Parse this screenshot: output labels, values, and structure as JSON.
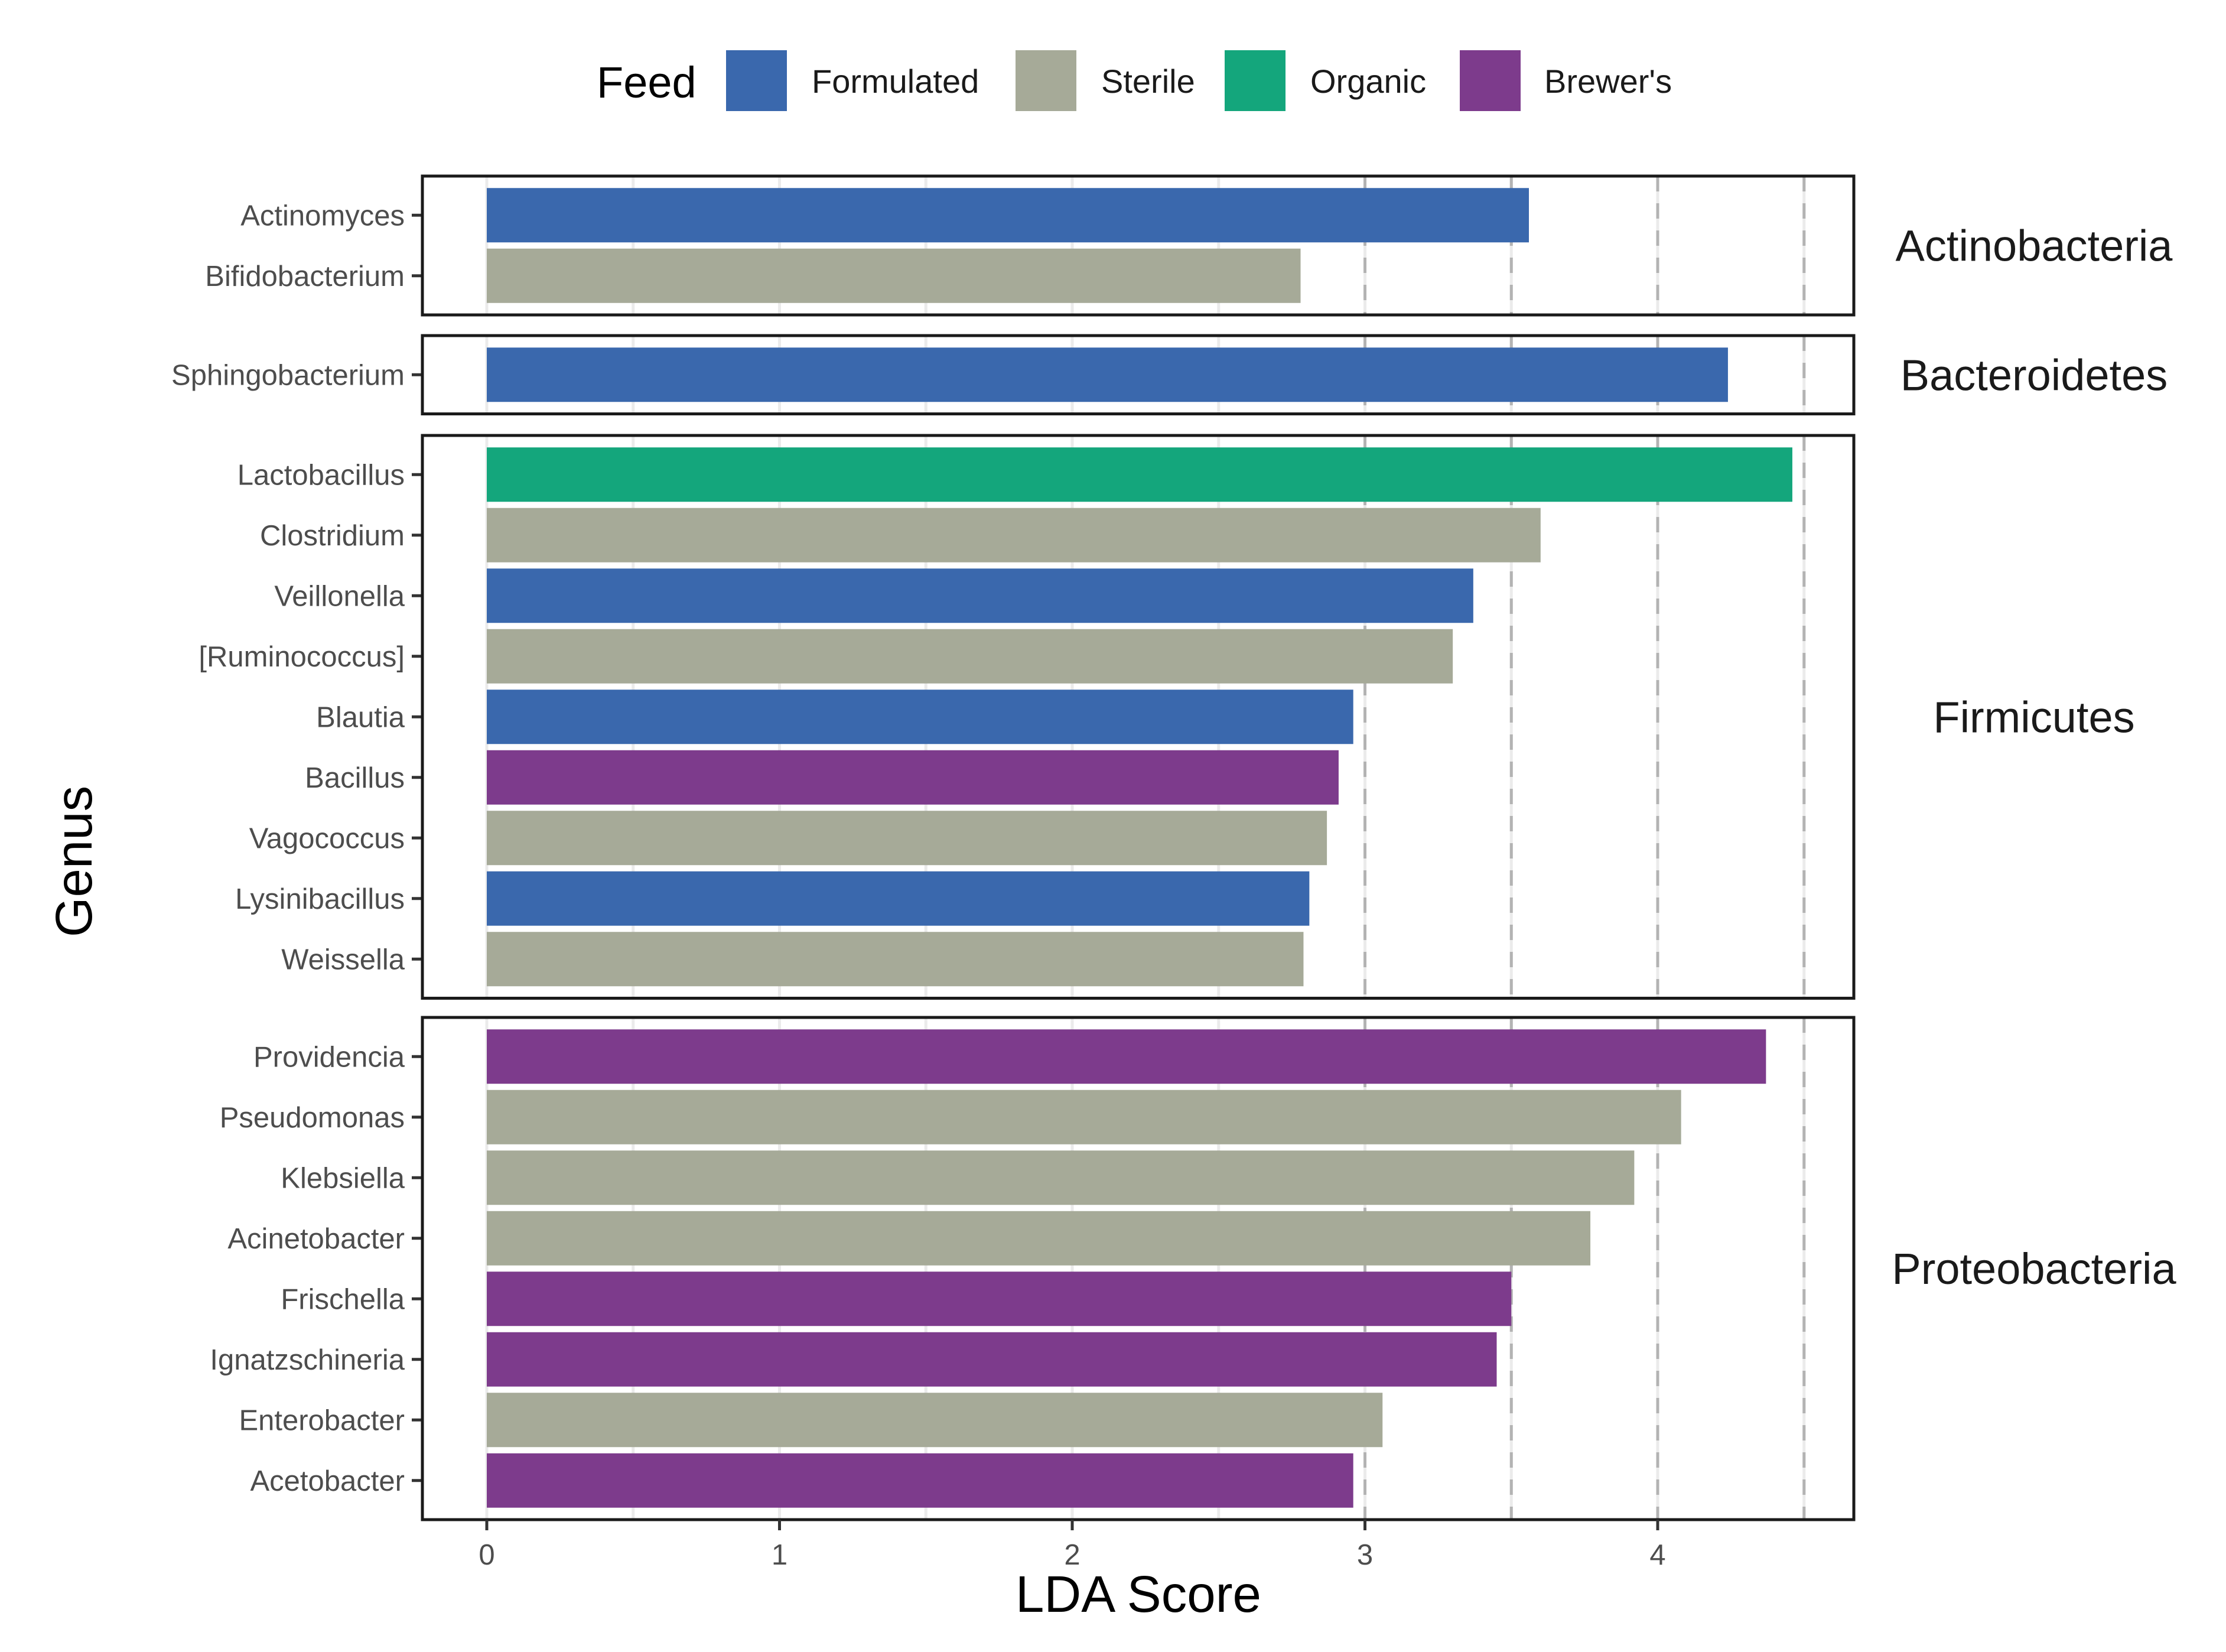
{
  "chart_data": {
    "type": "bar",
    "orientation": "horizontal",
    "xlabel": "LDA Score",
    "ylabel": "Genus",
    "xlim": [
      -0.22,
      4.67
    ],
    "xticks": [
      0,
      1,
      2,
      3,
      4
    ],
    "xtick_labels": [
      "0",
      "1",
      "2",
      "3",
      "4"
    ],
    "reference_lines": [
      3,
      3.5,
      4,
      4.5
    ],
    "legend": {
      "title": "Feed",
      "position": "top",
      "entries": [
        {
          "name": "Formulated",
          "color": "#3a68ad"
        },
        {
          "name": "Sterile",
          "color": "#a6aa98"
        },
        {
          "name": "Organic",
          "color": "#14a67c"
        },
        {
          "name": "Brewer's",
          "color": "#7d3b8c"
        }
      ]
    },
    "facets": [
      {
        "phylum": "Actinobacteria",
        "bars": [
          {
            "genus": "Actinomyces",
            "value": 3.56,
            "feed": "Formulated"
          },
          {
            "genus": "Bifidobacterium",
            "value": 2.78,
            "feed": "Sterile"
          }
        ]
      },
      {
        "phylum": "Bacteroidetes",
        "bars": [
          {
            "genus": "Sphingobacterium",
            "value": 4.24,
            "feed": "Formulated"
          }
        ]
      },
      {
        "phylum": "Firmicutes",
        "bars": [
          {
            "genus": "Lactobacillus",
            "value": 4.46,
            "feed": "Organic"
          },
          {
            "genus": "Clostridium",
            "value": 3.6,
            "feed": "Sterile"
          },
          {
            "genus": "Veillonella",
            "value": 3.37,
            "feed": "Formulated"
          },
          {
            "genus": "[Ruminococcus]",
            "value": 3.3,
            "feed": "Sterile"
          },
          {
            "genus": "Blautia",
            "value": 2.96,
            "feed": "Formulated"
          },
          {
            "genus": "Bacillus",
            "value": 2.91,
            "feed": "Brewer's"
          },
          {
            "genus": "Vagococcus",
            "value": 2.87,
            "feed": "Sterile"
          },
          {
            "genus": "Lysinibacillus",
            "value": 2.81,
            "feed": "Formulated"
          },
          {
            "genus": "Weissella",
            "value": 2.79,
            "feed": "Sterile"
          }
        ]
      },
      {
        "phylum": "Proteobacteria",
        "bars": [
          {
            "genus": "Providencia",
            "value": 4.37,
            "feed": "Brewer's"
          },
          {
            "genus": "Pseudomonas",
            "value": 4.08,
            "feed": "Sterile"
          },
          {
            "genus": "Klebsiella",
            "value": 3.92,
            "feed": "Sterile"
          },
          {
            "genus": "Acinetobacter",
            "value": 3.77,
            "feed": "Sterile"
          },
          {
            "genus": "Frischella",
            "value": 3.5,
            "feed": "Brewer's"
          },
          {
            "genus": "Ignatzschineria",
            "value": 3.45,
            "feed": "Brewer's"
          },
          {
            "genus": "Enterobacter",
            "value": 3.06,
            "feed": "Sterile"
          },
          {
            "genus": "Acetobacter",
            "value": 2.96,
            "feed": "Brewer's"
          }
        ]
      }
    ]
  }
}
